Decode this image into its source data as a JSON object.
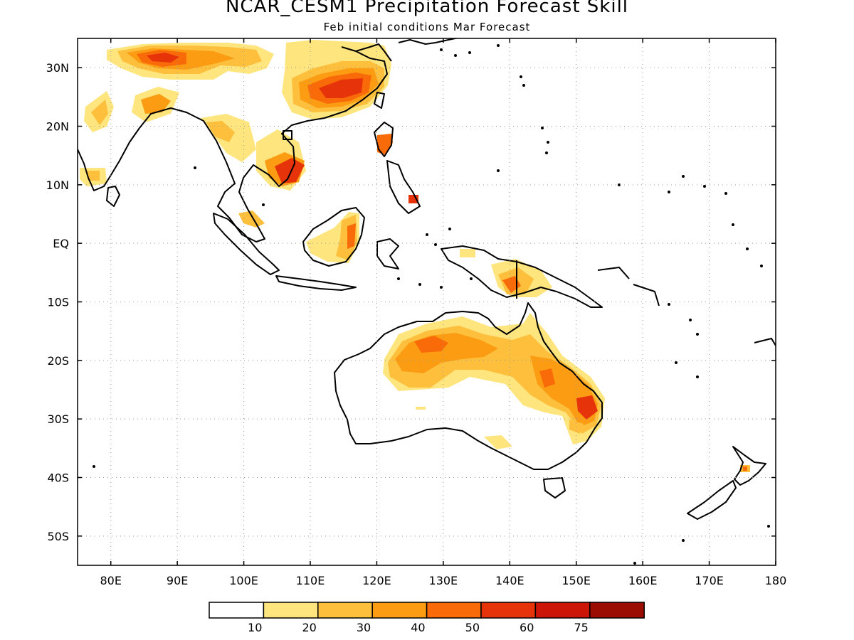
{
  "title": "NCAR_CESM1 Precipitation Forecast Skill",
  "subtitle": "Feb initial conditions  Mar Forecast",
  "axes": {
    "lon_labels": [
      "80E",
      "90E",
      "100E",
      "110E",
      "120E",
      "130E",
      "140E",
      "150E",
      "160E",
      "170E",
      "180"
    ],
    "lat_labels": [
      "30N",
      "20N",
      "10N",
      "EQ",
      "10S",
      "20S",
      "30S",
      "40S",
      "50S"
    ],
    "lon_range": [
      75,
      180
    ],
    "lat_range": [
      -55,
      35
    ],
    "grid": "dotted"
  },
  "colorbar": {
    "tick_labels": [
      "10",
      "20",
      "30",
      "40",
      "50",
      "60",
      "75"
    ],
    "colors": [
      "#ffffff",
      "#fee57d",
      "#fdbf3c",
      "#fb9c13",
      "#f96a09",
      "#e6330a",
      "#cc1506",
      "#9b0c02"
    ]
  }
}
